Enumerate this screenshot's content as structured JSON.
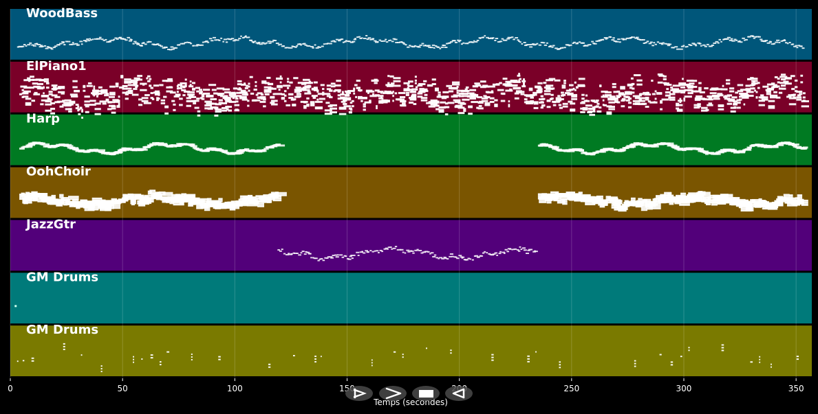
{
  "chart_data": {
    "type": "piano-roll",
    "xlabel": "Temps (secondes)",
    "xlim": [
      0,
      357
    ],
    "xticks": [
      0,
      50,
      100,
      150,
      200,
      250,
      300,
      350
    ],
    "grid": true,
    "tracks": [
      {
        "name": "WoodBass",
        "color": "#00567a",
        "segments": [
          [
            3,
            353
          ]
        ],
        "density": 1.4,
        "noteHeight": 2,
        "noteWidth": [
          0.8,
          1.6
        ],
        "spread": 0.04,
        "style": "line"
      },
      {
        "name": "ElPiano1",
        "color": "#7a0028",
        "segments": [
          [
            4,
            353
          ]
        ],
        "density": 1.8,
        "noteHeight": 3,
        "noteWidth": [
          0.8,
          3.5
        ],
        "spread": 0.3,
        "style": "chords"
      },
      {
        "name": "Harp",
        "color": "#007a22",
        "segments": [
          [
            4,
            119
          ],
          [
            235,
            353
          ]
        ],
        "density": 1.6,
        "noteHeight": 3,
        "noteWidth": [
          1.5,
          4
        ],
        "spread": 0.02,
        "style": "line"
      },
      {
        "name": "OohChoir",
        "color": "#7a5500",
        "segments": [
          [
            4,
            119
          ],
          [
            235,
            353
          ]
        ],
        "density": 1.6,
        "noteHeight": 3,
        "noteWidth": [
          1.5,
          5
        ],
        "spread": 0.08,
        "style": "thick"
      },
      {
        "name": "JazzGtr",
        "color": "#52007a",
        "segments": [
          [
            119,
            234
          ]
        ],
        "density": 1.3,
        "noteHeight": 2,
        "noteWidth": [
          0.8,
          1.6
        ],
        "spread": 0.05,
        "style": "line"
      },
      {
        "name": "GM Drums",
        "color": "#007a7a",
        "segments": [
          [
            1,
            2
          ]
        ],
        "density": 1.0,
        "noteHeight": 3,
        "noteWidth": [
          1,
          1
        ],
        "spread": 0.0,
        "style": "dot"
      },
      {
        "name": "GM Drums",
        "color": "#7a7a00",
        "segments": [
          [
            3,
            353
          ]
        ],
        "density": 0.25,
        "noteHeight": 2,
        "noteWidth": [
          0.5,
          1.2
        ],
        "spread": 0.18,
        "style": "drums"
      }
    ]
  },
  "controls": [
    {
      "name": "play-button",
      "icon": "play-icon"
    },
    {
      "name": "fast-forward-button",
      "icon": "chevron-right-icon"
    },
    {
      "name": "stop-button",
      "icon": "stop-icon"
    },
    {
      "name": "rewind-button",
      "icon": "rewind-icon"
    }
  ]
}
